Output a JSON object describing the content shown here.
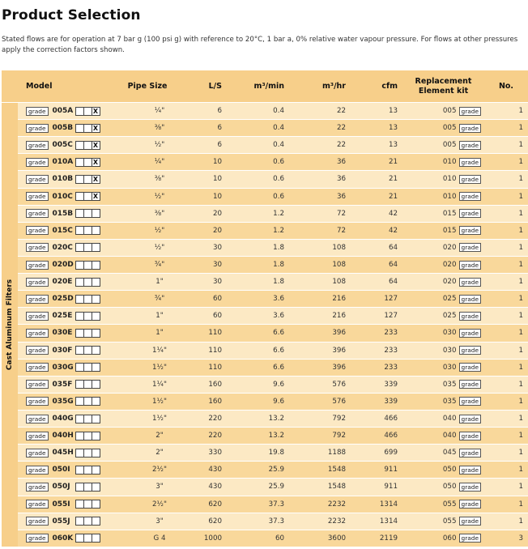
{
  "title": "Product Selection",
  "description": "Stated flows are for operation at 7 bar g (100 psi g) with reference to 20°C, 1 bar a, 0% relative water vapour pressure. For flows at other pressures apply the correction factors shown.",
  "side_label": "Cast Aluminum Filters",
  "grade_label": "grade",
  "headers": {
    "model": "Model",
    "pipe": "Pipe Size",
    "ls": "L/S",
    "m3min": "m³/min",
    "m3hr": "m³/hr",
    "cfm": "cfm",
    "kit": "Replacement Element kit",
    "no": "No."
  },
  "rows": [
    {
      "model": "005A",
      "boxes": [
        "",
        "",
        " X"
      ],
      "pipe": "¼\"",
      "ls": "6",
      "m3min": "0.4",
      "m3hr": "22",
      "cfm": "13",
      "kit": "005",
      "no": "1"
    },
    {
      "model": "005B",
      "boxes": [
        "",
        "",
        "X"
      ],
      "pipe": "⅜\"",
      "ls": "6",
      "m3min": "0.4",
      "m3hr": "22",
      "cfm": "13",
      "kit": "005",
      "no": "1"
    },
    {
      "model": "005C",
      "boxes": [
        "",
        "",
        "X"
      ],
      "pipe": "½\"",
      "ls": "6",
      "m3min": "0.4",
      "m3hr": "22",
      "cfm": "13",
      "kit": "005",
      "no": "1"
    },
    {
      "model": "010A",
      "boxes": [
        "",
        "",
        "X"
      ],
      "pipe": "¼\"",
      "ls": "10",
      "m3min": "0.6",
      "m3hr": "36",
      "cfm": "21",
      "kit": "010",
      "no": "1"
    },
    {
      "model": "010B",
      "boxes": [
        "",
        "",
        "X"
      ],
      "pipe": "⅜\"",
      "ls": "10",
      "m3min": "0.6",
      "m3hr": "36",
      "cfm": "21",
      "kit": "010",
      "no": "1"
    },
    {
      "model": "010C",
      "boxes": [
        "",
        "",
        "X"
      ],
      "pipe": "½\"",
      "ls": "10",
      "m3min": "0.6",
      "m3hr": "36",
      "cfm": "21",
      "kit": "010",
      "no": "1"
    },
    {
      "model": "015B",
      "boxes": [
        "",
        "",
        ""
      ],
      "pipe": "⅜\"",
      "ls": "20",
      "m3min": "1.2",
      "m3hr": "72",
      "cfm": "42",
      "kit": "015",
      "no": "1"
    },
    {
      "model": "015C",
      "boxes": [
        "",
        "",
        ""
      ],
      "pipe": "½\"",
      "ls": "20",
      "m3min": "1.2",
      "m3hr": "72",
      "cfm": "42",
      "kit": "015",
      "no": "1"
    },
    {
      "model": "020C",
      "boxes": [
        "",
        "",
        ""
      ],
      "pipe": "½\"",
      "ls": "30",
      "m3min": "1.8",
      "m3hr": "108",
      "cfm": "64",
      "kit": "020",
      "no": "1"
    },
    {
      "model": "020D",
      "boxes": [
        "",
        "",
        ""
      ],
      "pipe": "¾\"",
      "ls": "30",
      "m3min": "1.8",
      "m3hr": "108",
      "cfm": "64",
      "kit": "020",
      "no": "1"
    },
    {
      "model": "020E",
      "boxes": [
        "",
        "",
        ""
      ],
      "pipe": "1\"",
      "ls": "30",
      "m3min": "1.8",
      "m3hr": "108",
      "cfm": "64",
      "kit": "020",
      "no": "1"
    },
    {
      "model": "025D",
      "boxes": [
        "",
        "",
        ""
      ],
      "pipe": "¾\"",
      "ls": "60",
      "m3min": "3.6",
      "m3hr": "216",
      "cfm": "127",
      "kit": "025",
      "no": "1"
    },
    {
      "model": "025E",
      "boxes": [
        "",
        "",
        ""
      ],
      "pipe": "1\"",
      "ls": "60",
      "m3min": "3.6",
      "m3hr": "216",
      "cfm": "127",
      "kit": "025",
      "no": "1"
    },
    {
      "model": "030E",
      "boxes": [
        "",
        "",
        ""
      ],
      "pipe": "1\"",
      "ls": "110",
      "m3min": "6.6",
      "m3hr": "396",
      "cfm": "233",
      "kit": "030",
      "no": "1"
    },
    {
      "model": "030F",
      "boxes": [
        "",
        "",
        ""
      ],
      "pipe": "1¼\"",
      "ls": "110",
      "m3min": "6.6",
      "m3hr": "396",
      "cfm": "233",
      "kit": "030",
      "no": "1"
    },
    {
      "model": "030G",
      "boxes": [
        "",
        "",
        ""
      ],
      "pipe": "1½\"",
      "ls": "110",
      "m3min": "6.6",
      "m3hr": "396",
      "cfm": "233",
      "kit": "030",
      "no": "1"
    },
    {
      "model": "035F",
      "boxes": [
        "",
        "",
        ""
      ],
      "pipe": "1¼\"",
      "ls": "160",
      "m3min": "9.6",
      "m3hr": "576",
      "cfm": "339",
      "kit": "035",
      "no": "1"
    },
    {
      "model": "035G",
      "boxes": [
        "",
        "",
        ""
      ],
      "pipe": "1½\"",
      "ls": "160",
      "m3min": "9.6",
      "m3hr": "576",
      "cfm": "339",
      "kit": "035",
      "no": "1"
    },
    {
      "model": "040G",
      "boxes": [
        "",
        "",
        ""
      ],
      "pipe": "1½\"",
      "ls": "220",
      "m3min": "13.2",
      "m3hr": "792",
      "cfm": "466",
      "kit": "040",
      "no": "1"
    },
    {
      "model": "040H",
      "boxes": [
        "",
        "",
        ""
      ],
      "pipe": "2\"",
      "ls": "220",
      "m3min": "13.2",
      "m3hr": "792",
      "cfm": "466",
      "kit": "040",
      "no": "1"
    },
    {
      "model": "045H",
      "boxes": [
        "",
        "",
        ""
      ],
      "pipe": "2\"",
      "ls": "330",
      "m3min": "19.8",
      "m3hr": "1188",
      "cfm": "699",
      "kit": "045",
      "no": "1"
    },
    {
      "model": "050I",
      "boxes": [
        "",
        "",
        ""
      ],
      "pipe": "2½\"",
      "ls": "430",
      "m3min": "25.9",
      "m3hr": "1548",
      "cfm": "911",
      "kit": "050",
      "no": "1"
    },
    {
      "model": "050J",
      "boxes": [
        "",
        "",
        ""
      ],
      "pipe": "3\"",
      "ls": "430",
      "m3min": "25.9",
      "m3hr": "1548",
      "cfm": "911",
      "kit": "050",
      "no": "1"
    },
    {
      "model": "055I",
      "boxes": [
        "",
        "",
        ""
      ],
      "pipe": "2½\"",
      "ls": "620",
      "m3min": "37.3",
      "m3hr": "2232",
      "cfm": "1314",
      "kit": "055",
      "no": "1"
    },
    {
      "model": "055J",
      "boxes": [
        "",
        "",
        ""
      ],
      "pipe": "3\"",
      "ls": "620",
      "m3min": "37.3",
      "m3hr": "2232",
      "cfm": "1314",
      "kit": "055",
      "no": "1"
    },
    {
      "model": "060K",
      "boxes": [
        "",
        "",
        ""
      ],
      "pipe": "G 4",
      "ls": "1000",
      "m3min": "60",
      "m3hr": "3600",
      "cfm": "2119",
      "kit": "060",
      "no": "3"
    }
  ]
}
